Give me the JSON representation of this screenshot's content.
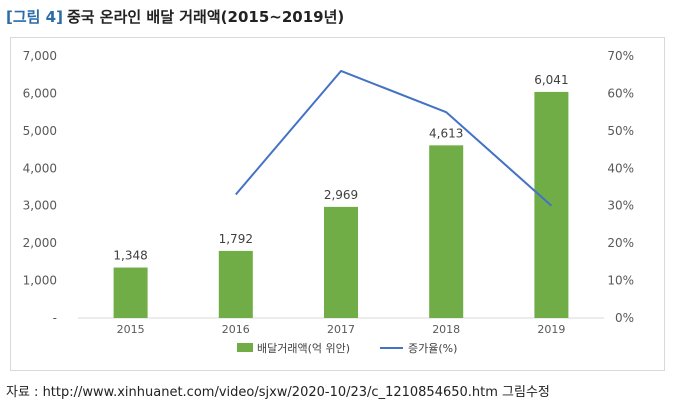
{
  "figure": {
    "label": "[그림 4]",
    "title": "중국 온라인 배달 거래액(2015~2019년)"
  },
  "source": "자료 : http://www.xinhuanet.com/video/sjxw/2020-10/23/c_1210854650.htm 그림수정",
  "colors": {
    "bar": "#70AD47",
    "line": "#4472C4",
    "title_label": "#2B6BA8"
  },
  "chart_data": {
    "type": "bar",
    "categories": [
      "2015",
      "2016",
      "2017",
      "2018",
      "2019"
    ],
    "series": [
      {
        "name": "배달거래액(억 위안)",
        "type": "bar",
        "axis": "left",
        "values": [
          1348,
          1792,
          2969,
          4613,
          6041
        ],
        "labels": [
          "1,348",
          "1,792",
          "2,969",
          "4,613",
          "6,041"
        ]
      },
      {
        "name": "증가율(%)",
        "type": "line",
        "axis": "right",
        "values": [
          null,
          33,
          66,
          55,
          30
        ]
      }
    ],
    "y_left": {
      "ylim": [
        0,
        7000
      ],
      "ticks": [
        0,
        1000,
        2000,
        3000,
        4000,
        5000,
        6000,
        7000
      ],
      "tick_labels": [
        "-",
        "1,000",
        "2,000",
        "3,000",
        "4,000",
        "5,000",
        "6,000",
        "7,000"
      ]
    },
    "y_right": {
      "ylim": [
        0,
        70
      ],
      "ticks": [
        0,
        10,
        20,
        30,
        40,
        50,
        60,
        70
      ],
      "tick_labels": [
        "0%",
        "10%",
        "20%",
        "30%",
        "40%",
        "50%",
        "60%",
        "70%"
      ]
    },
    "legend_position": "bottom",
    "grid": false
  }
}
